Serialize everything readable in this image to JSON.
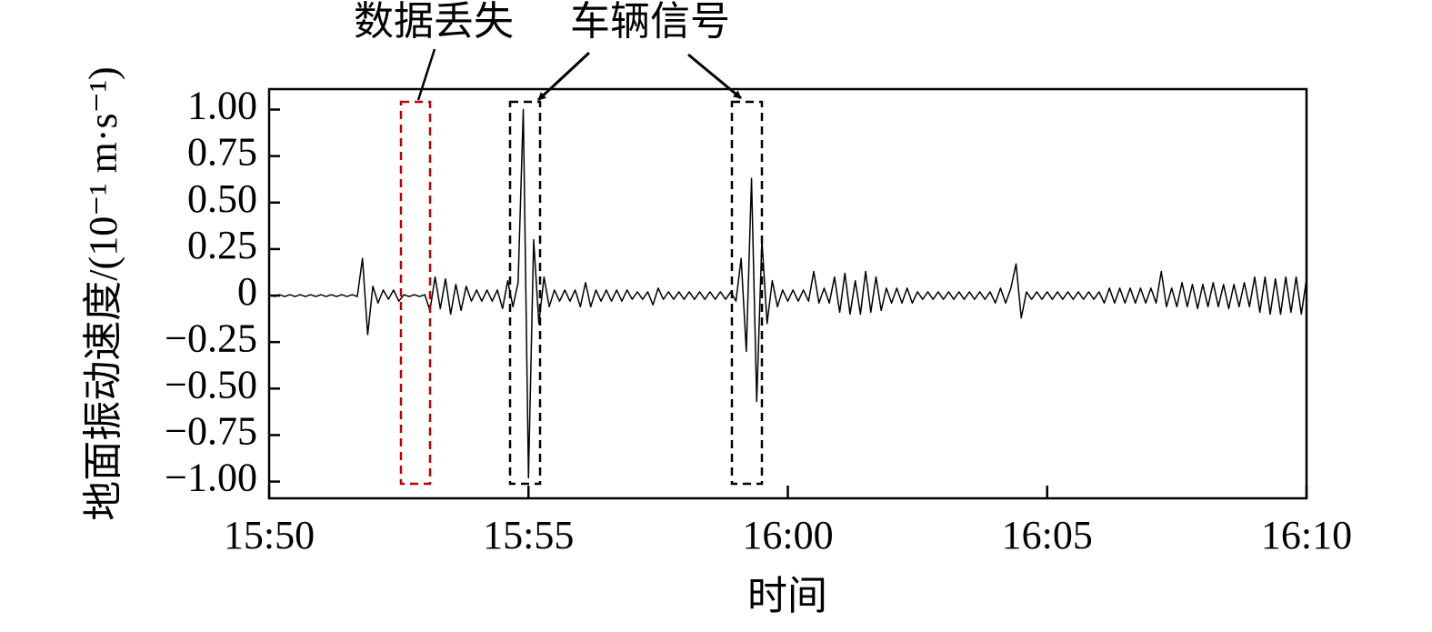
{
  "chart_data": {
    "type": "line",
    "xlabel": "时间",
    "ylabel": "地面振动速度/(10⁻¹ m·s⁻¹)",
    "annotations": [
      "数据丢失",
      "车辆信号"
    ],
    "color": "#000000",
    "grid": false,
    "xlim": [
      950,
      970
    ],
    "ylim": [
      -1.09,
      1.11
    ],
    "xticks": [
      {
        "value": 950,
        "label": "15:50"
      },
      {
        "value": 955,
        "label": "15:55"
      },
      {
        "value": 960,
        "label": "16:00"
      },
      {
        "value": 965,
        "label": "16:05"
      },
      {
        "value": 970,
        "label": "16:10"
      }
    ],
    "yticks": [
      {
        "value": 1,
        "label": "1.00"
      },
      {
        "value": 0.75,
        "label": "0.75"
      },
      {
        "value": 0.5,
        "label": "0.50"
      },
      {
        "value": 0.25,
        "label": "0.25"
      },
      0,
      {
        "value": -0.25,
        "label": "−0.25"
      },
      {
        "value": -0.5,
        "label": "−0.50"
      },
      {
        "value": -0.75,
        "label": "−0.75"
      },
      {
        "value": -1,
        "label": "−1.00"
      }
    ],
    "x": [
      950,
      950.1,
      950.2,
      950.3,
      950.4,
      950.5,
      950.6,
      950.7,
      950.8,
      950.9,
      951,
      951.1,
      951.2,
      951.3,
      951.4,
      951.5,
      951.6,
      951.7,
      951.8,
      951.9,
      952,
      952.1,
      952.2,
      952.3,
      952.4,
      952.5,
      952.6,
      952.7,
      952.8,
      952.9,
      953,
      953.1,
      953.2,
      953.3,
      953.4,
      953.5,
      953.6,
      953.7,
      953.8,
      953.9,
      954,
      954.1,
      954.2,
      954.3,
      954.4,
      954.5,
      954.6,
      954.7,
      954.8,
      954.9,
      955,
      955.1,
      955.2,
      955.3,
      955.4,
      955.5,
      955.6,
      955.7,
      955.8,
      955.9,
      956,
      956.1,
      956.2,
      956.3,
      956.4,
      956.5,
      956.6,
      956.7,
      956.8,
      956.9,
      957,
      957.1,
      957.2,
      957.3,
      957.4,
      957.5,
      957.6,
      957.7,
      957.8,
      957.9,
      958,
      958.1,
      958.2,
      958.3,
      958.4,
      958.5,
      958.6,
      958.7,
      958.8,
      958.9,
      959,
      959.1,
      959.2,
      959.3,
      959.4,
      959.5,
      959.6,
      959.7,
      959.8,
      959.9,
      960,
      960.1,
      960.2,
      960.3,
      960.4,
      960.5,
      960.6,
      960.7,
      960.8,
      960.9,
      961,
      961.1,
      961.2,
      961.3,
      961.4,
      961.5,
      961.6,
      961.7,
      961.8,
      961.9,
      962,
      962.1,
      962.2,
      962.3,
      962.4,
      962.5,
      962.6,
      962.7,
      962.8,
      962.9,
      963,
      963.1,
      963.2,
      963.3,
      963.4,
      963.5,
      963.6,
      963.7,
      963.8,
      963.9,
      964,
      964.1,
      964.2,
      964.3,
      964.4,
      964.5,
      964.6,
      964.7,
      964.8,
      964.9,
      965,
      965.1,
      965.2,
      965.3,
      965.4,
      965.5,
      965.6,
      965.7,
      965.8,
      965.9,
      966,
      966.1,
      966.2,
      966.3,
      966.4,
      966.5,
      966.6,
      966.7,
      966.8,
      966.9,
      967,
      967.1,
      967.2,
      967.3,
      967.4,
      967.5,
      967.6,
      967.7,
      967.8,
      967.9,
      968,
      968.1,
      968.2,
      968.3,
      968.4,
      968.5,
      968.6,
      968.7,
      968.8,
      968.9,
      969,
      969.1,
      969.2,
      969.3,
      969.4,
      969.5,
      969.6,
      969.7,
      969.8,
      969.9,
      970
    ],
    "values": [
      0.005,
      -0.005,
      0.005,
      -0.005,
      0.005,
      -0.005,
      0.005,
      -0.005,
      0.005,
      -0.005,
      0.005,
      -0.005,
      0.005,
      -0.005,
      0.005,
      -0.005,
      0.005,
      -0.005,
      0.2,
      -0.21,
      0.05,
      -0.04,
      0.03,
      -0.02,
      0.03,
      -0.03,
      0.005,
      -0.005,
      0.005,
      -0.005,
      0.005,
      -0.08,
      0.1,
      -0.07,
      0.09,
      -0.1,
      0.06,
      -0.08,
      0.05,
      -0.03,
      0.03,
      -0.03,
      0.03,
      -0.03,
      0.03,
      -0.07,
      0.08,
      -0.06,
      0.07,
      1.0,
      -0.98,
      0.3,
      -0.15,
      0.1,
      -0.06,
      0.03,
      -0.03,
      0.03,
      -0.03,
      0.03,
      -0.06,
      0.07,
      -0.06,
      0.03,
      -0.03,
      0.03,
      -0.03,
      0.03,
      -0.03,
      0.03,
      -0.02,
      0.02,
      -0.02,
      0.02,
      -0.05,
      0.04,
      -0.02,
      0.02,
      -0.02,
      0.02,
      -0.02,
      0.02,
      -0.02,
      0.02,
      -0.02,
      0.02,
      -0.02,
      0.02,
      -0.02,
      0.02,
      -0.03,
      0.2,
      -0.3,
      0.63,
      -0.57,
      0.3,
      -0.15,
      0.08,
      -0.06,
      0.03,
      -0.03,
      0.03,
      -0.03,
      0.03,
      -0.03,
      0.13,
      -0.04,
      0.04,
      -0.04,
      0.1,
      -0.09,
      0.12,
      -0.1,
      0.08,
      -0.1,
      0.13,
      -0.09,
      0.1,
      -0.08,
      0.04,
      -0.04,
      0.04,
      -0.04,
      0.04,
      -0.04,
      0.02,
      -0.02,
      0.02,
      -0.02,
      0.02,
      -0.02,
      0.02,
      -0.02,
      0.02,
      -0.02,
      0.02,
      -0.02,
      0.02,
      -0.02,
      0.02,
      -0.04,
      0.04,
      -0.04,
      0.04,
      0.17,
      -0.12,
      0.02,
      -0.02,
      0.02,
      -0.02,
      0.02,
      -0.02,
      0.02,
      -0.02,
      0.02,
      -0.02,
      0.02,
      -0.02,
      0.02,
      -0.02,
      0.02,
      -0.04,
      0.04,
      -0.04,
      0.04,
      -0.04,
      0.04,
      -0.04,
      0.04,
      -0.04,
      0.04,
      -0.04,
      0.13,
      -0.06,
      0.04,
      -0.06,
      0.07,
      -0.06,
      0.06,
      -0.07,
      0.06,
      -0.06,
      0.07,
      -0.06,
      0.06,
      -0.07,
      0.06,
      -0.06,
      0.07,
      -0.06,
      0.1,
      -0.09,
      0.1,
      -0.1,
      0.09,
      -0.1,
      0.1,
      -0.09,
      0.1,
      -0.1,
      0.09
    ]
  }
}
